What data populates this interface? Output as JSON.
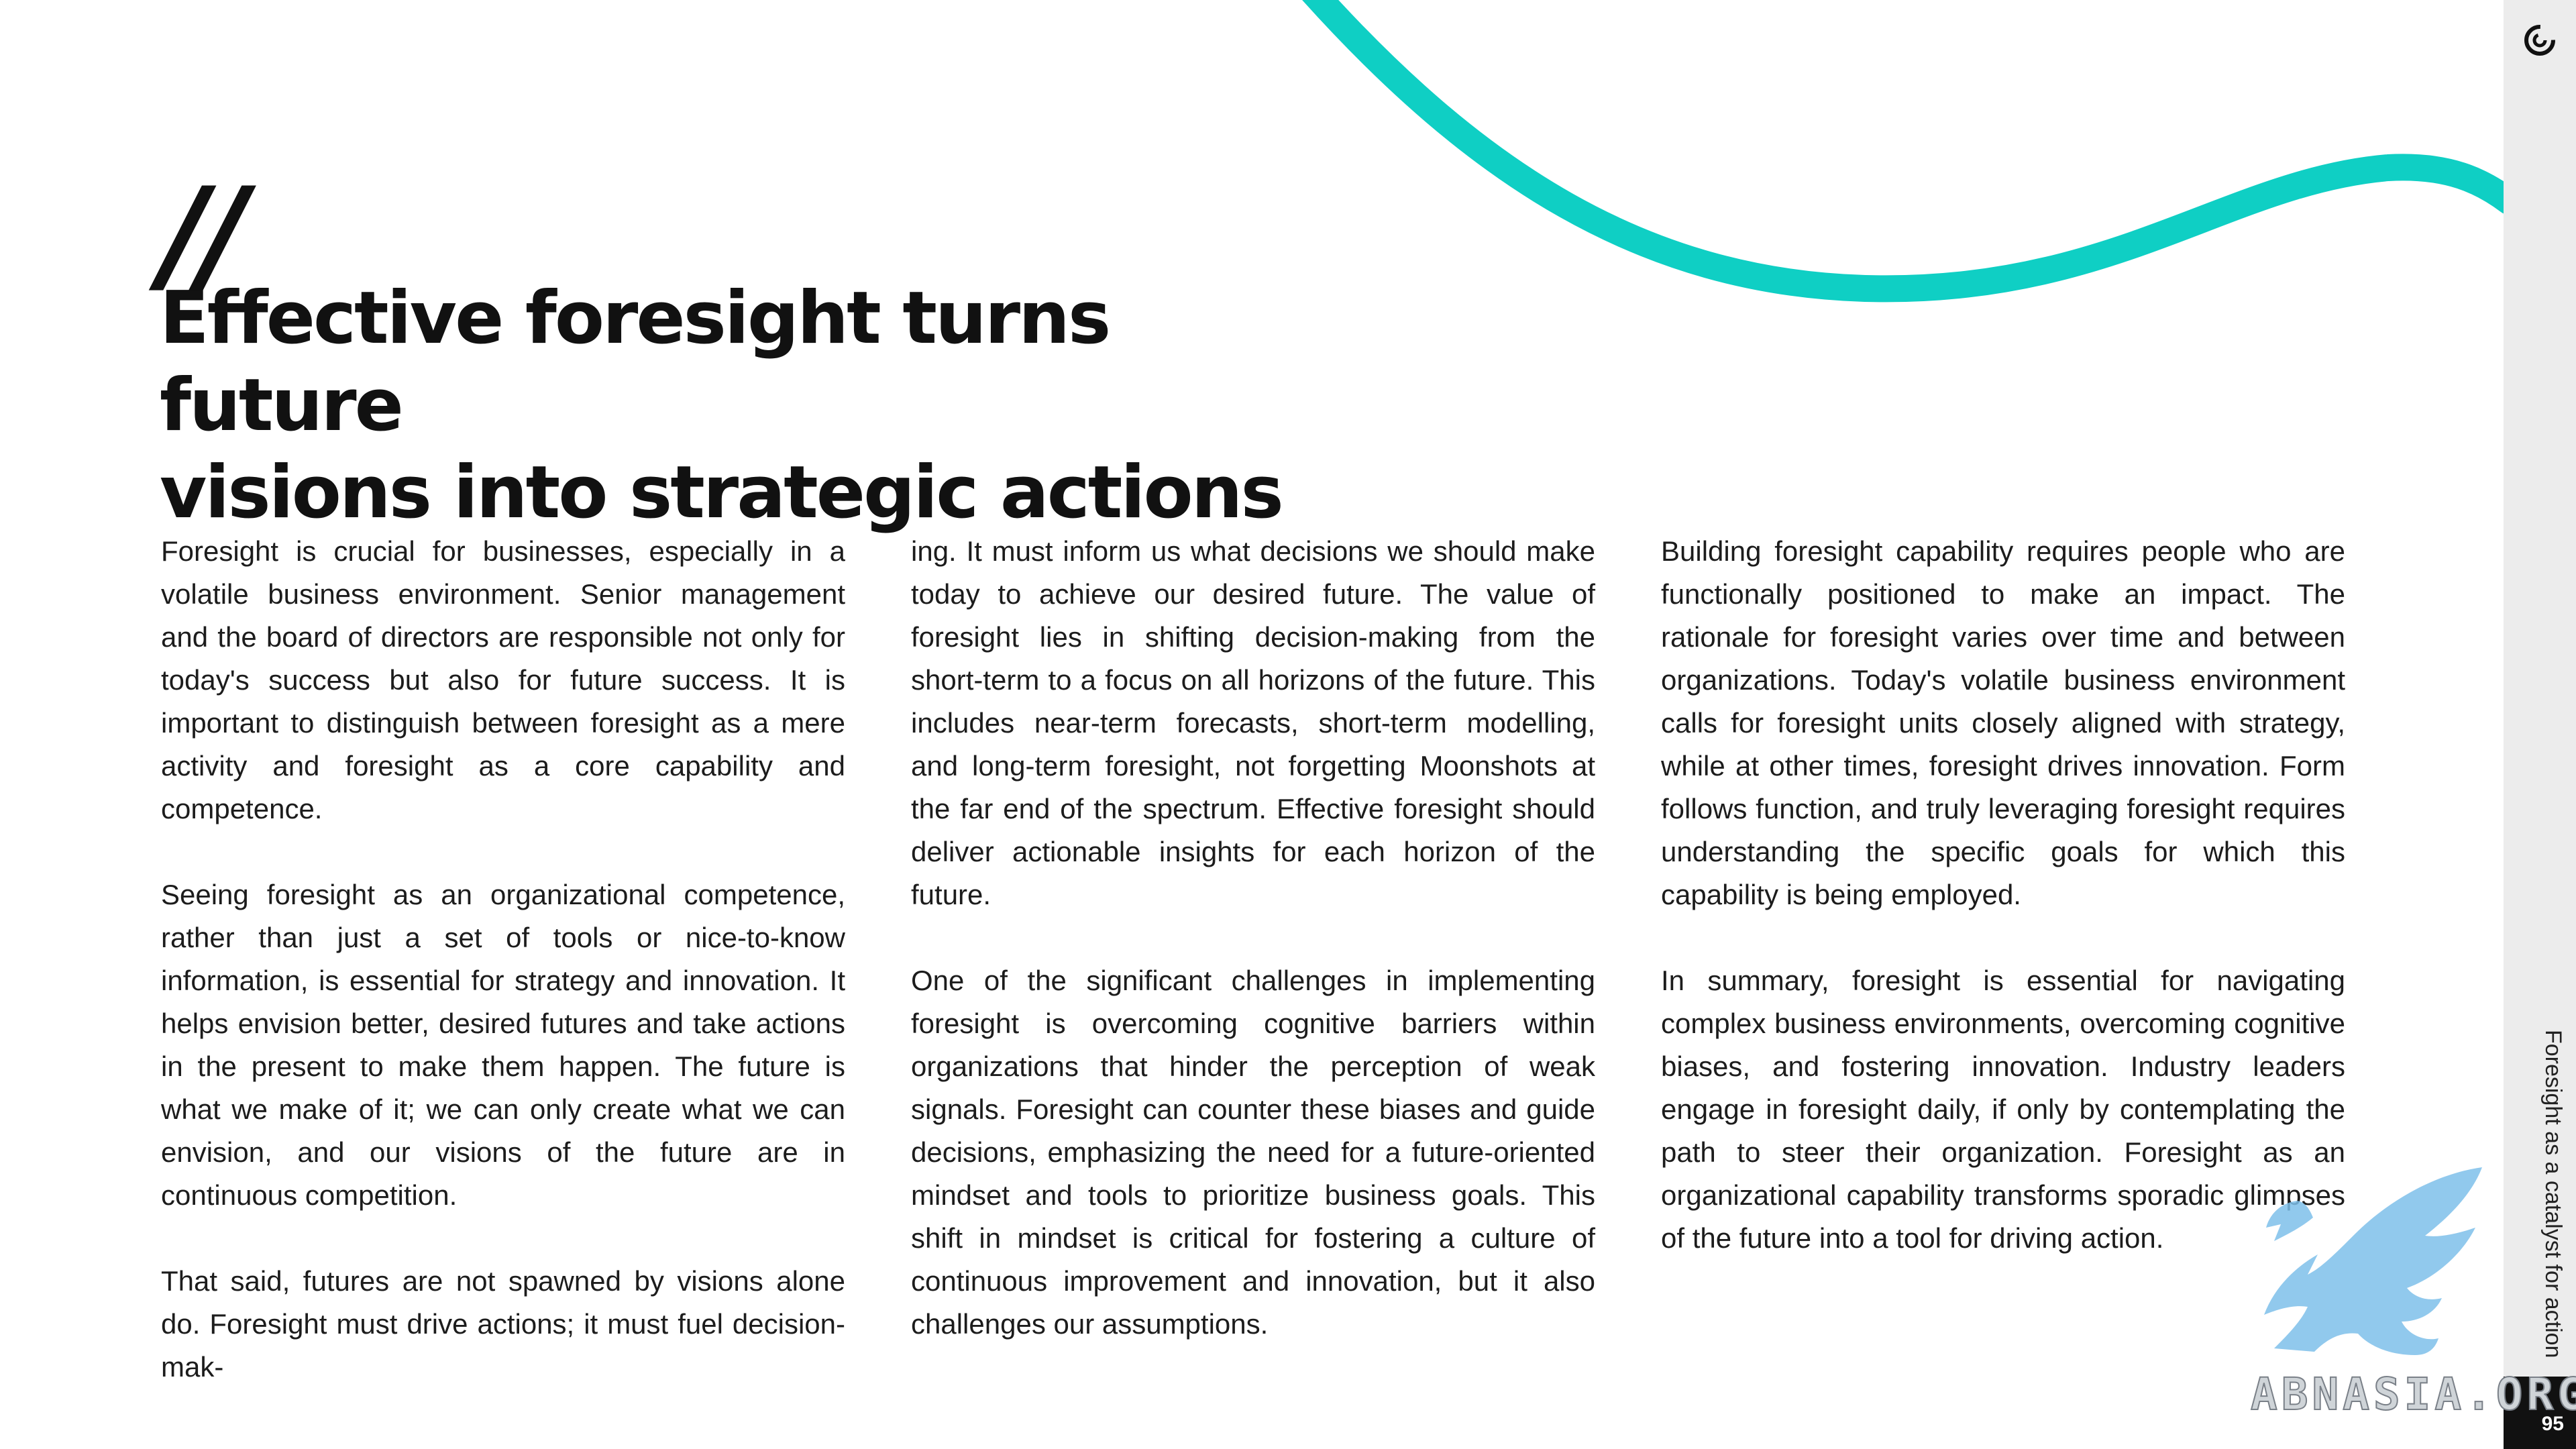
{
  "quote_mark": "//",
  "heading": {
    "line1": "Effective foresight turns future",
    "line2": "visions into strategic actions"
  },
  "columns": {
    "col1": {
      "p1": "Foresight is crucial for businesses, especially in a volatile business environment. Senior management and the board of directors are responsible not only for today's success but also for future success. It is important to distinguish between foresight as a mere activity and foresight as a core capability and competence.",
      "p2": "Seeing foresight as an organizational competence, rather than just a set of tools or nice-to-know information, is essential for strategy and innovation. It helps envision better, desired futures and take actions in the present to make them happen. The future is what we make of it; we can only create what we can envision, and our visions of the future are in continuous competition.",
      "p3": "That said, futures are not spawned by visions alone do. Foresight must drive actions; it must fuel decision-mak-"
    },
    "col2": {
      "p1": "ing. It must inform us what decisions we should make today to achieve our desired future. The value of foresight lies in shifting decision-making from the short-term to a focus on all horizons of the future. This includes near-term forecasts, short-term modelling, and long-term foresight, not forgetting Moonshots at the far end of the spectrum. Effective foresight should deliver actionable insights for each horizon of the future.",
      "p2": "One of the significant challenges in implementing foresight is overcoming cognitive barriers within organizations that hinder the perception of weak signals. Foresight can counter these biases and guide decisions, emphasizing the need for a future-oriented mindset and tools to prioritize business goals. This shift in mindset is critical for fostering a culture of continuous improvement and innovation, but it also challenges our assumptions."
    },
    "col3": {
      "p1": "Building foresight capability requires people who are functionally positioned to make an impact. The rationale for foresight varies over time and between organizations. Today's volatile business environment calls for foresight units closely aligned with strategy, while at other times, foresight drives innovation. Form follows function, and truly leveraging foresight requires understanding the specific goals for which this capability is being employed.",
      "p2": "In summary, foresight is essential for navigating complex business environments, overcoming cognitive biases, and fostering innovation. Industry leaders engage in foresight daily, if only by contemplating the path to steer their organization. Foresight as an organizational capability transforms sporadic glimpses of the future into a tool for driving action."
    }
  },
  "sidebar": {
    "section_title": "Foresight as a catalyst for action",
    "page_number": "95",
    "logo_icon": "brand-swirl-icon"
  },
  "watermark": {
    "text": "ABNASIA.ORG",
    "icon": "griffin-icon"
  },
  "colors": {
    "accent_wave": "#0fcfc4",
    "sidebar_bg": "#ececec",
    "text": "#1c1c1c",
    "watermark_blue": "#7ec0ea"
  }
}
